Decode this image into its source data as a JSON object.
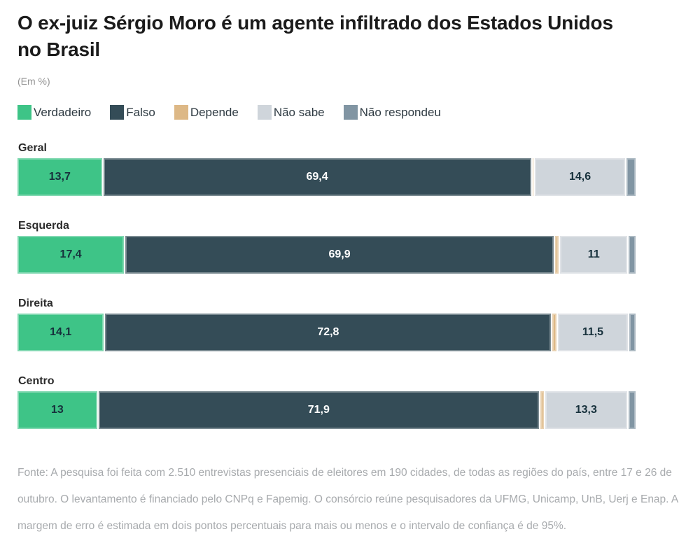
{
  "header": {
    "title": "O ex-juiz Sérgio Moro é um agente infiltrado dos Estados Unidos no Brasil",
    "subtitle": "(Em %)"
  },
  "footer": {
    "source": "Fonte: A pesquisa foi feita com 2.510 entrevistas presenciais de eleitores em 190 cidades, de todas as regiões do país, entre 17 e 26 de outubro. O levantamento é financiado pelo CNPq e Fapemig. O consórcio reúne pesquisadores da UFMG, Unicamp, UnB, Uerj e Enap. A margem de erro é estimada em dois pontos percentuais para mais ou menos e o intervalo de confiança é de 95%."
  },
  "chart_data": {
    "type": "bar",
    "orientation": "horizontal",
    "stacked": true,
    "unit": "%",
    "title": "O ex-juiz Sérgio Moro é um agente infiltrado dos Estados Unidos no Brasil",
    "subtitle": "(Em %)",
    "legend_position": "top",
    "grid": false,
    "axis_range": [
      0,
      100
    ],
    "categories": [
      "Geral",
      "Esquerda",
      "Direita",
      "Centro"
    ],
    "series": [
      {
        "name": "Verdadeiro",
        "color": "#3ec487",
        "text_color": "#17313c",
        "values": [
          13.7,
          17.4,
          14.1,
          13.0
        ]
      },
      {
        "name": "Falso",
        "color": "#344c57",
        "text_color": "#ffffff",
        "values": [
          69.4,
          69.9,
          72.8,
          71.9
        ]
      },
      {
        "name": "Depende",
        "color": "#ddb886",
        "text_color": "#17313c",
        "values": [
          0.2,
          0.6,
          0.6,
          0.6
        ]
      },
      {
        "name": "Não sabe",
        "color": "#cfd5db",
        "text_color": "#17313c",
        "values": [
          14.6,
          11.0,
          11.5,
          13.3
        ]
      },
      {
        "name": "Não respondeu",
        "color": "#8195a3",
        "text_color": "#17313c",
        "values": [
          1.5,
          1.1,
          1.0,
          1.2
        ]
      }
    ],
    "value_labels": [
      [
        "13,7",
        "69,4",
        "",
        "14,6",
        ""
      ],
      [
        "17,4",
        "69,9",
        "",
        "11",
        ""
      ],
      [
        "14,1",
        "72,8",
        "",
        "11,5",
        ""
      ],
      [
        "13",
        "71,9",
        "",
        "13,3",
        ""
      ]
    ],
    "unlabeled_values_estimated": true
  }
}
